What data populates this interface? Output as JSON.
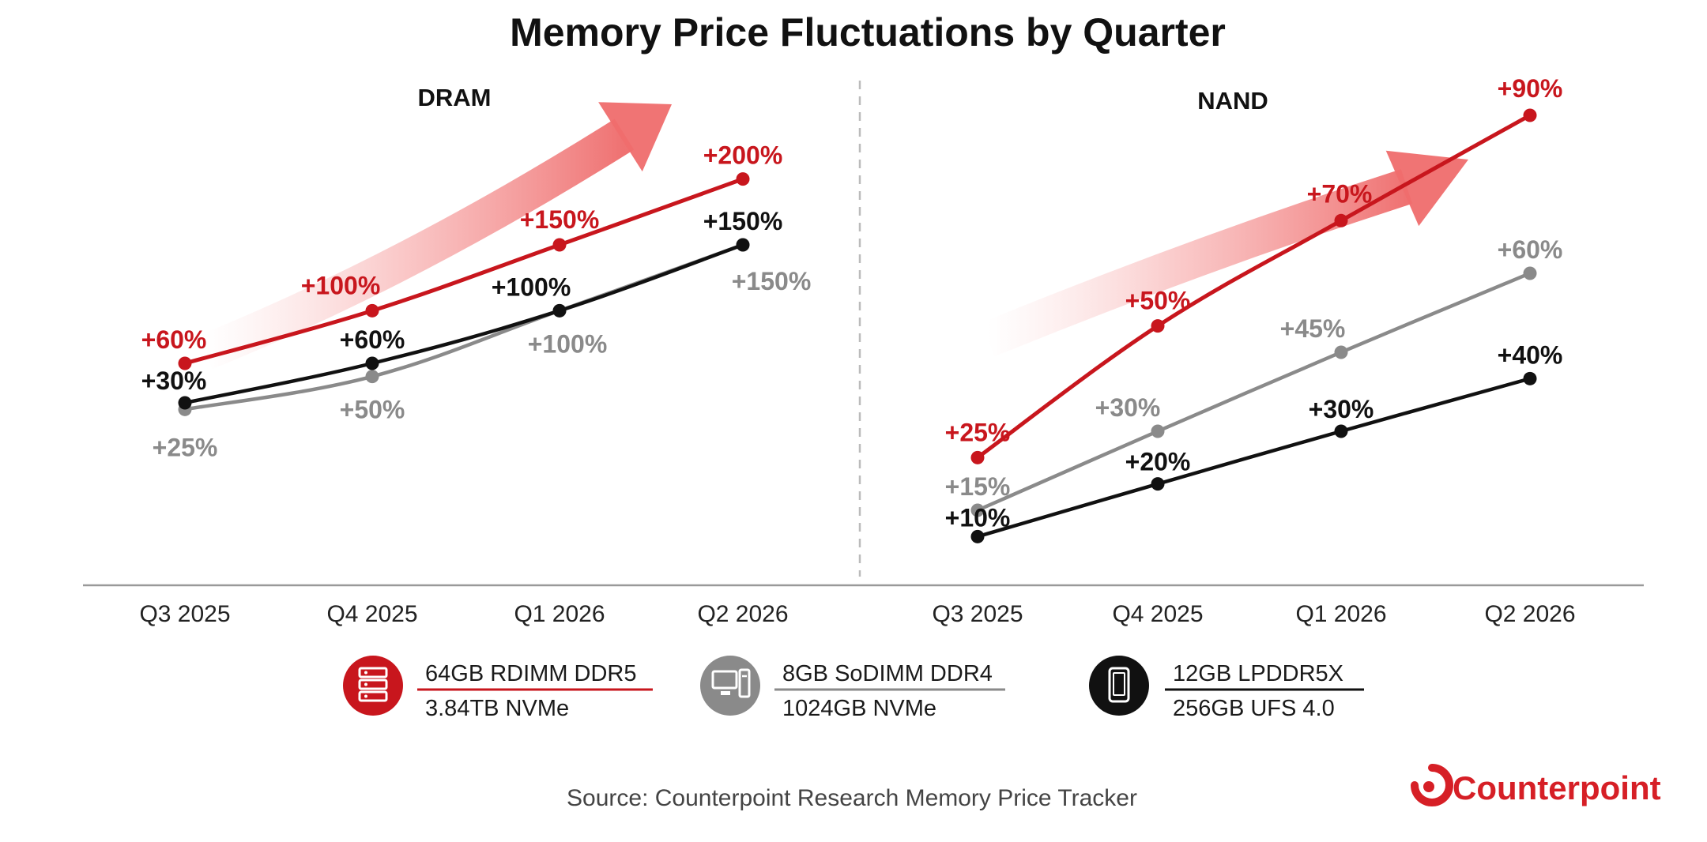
{
  "title": "Memory Price Fluctuations by Quarter",
  "source": "Source: Counterpoint Research Memory Price Tracker",
  "brand": {
    "name": "Counterpoint",
    "color": "#d61f26"
  },
  "colors": {
    "red": "#c8161d",
    "gray": "#8a8a8a",
    "black": "#111111",
    "axis": "#999999",
    "divider": "#bbbbbb"
  },
  "chart_data": [
    {
      "type": "line",
      "title": "DRAM",
      "categories": [
        "Q3 2025",
        "Q4 2025",
        "Q1 2026",
        "Q2 2026"
      ],
      "series": [
        {
          "key": "red",
          "values": [
            60,
            100,
            150,
            200
          ],
          "labels": [
            "+60%",
            "+100%",
            "+150%",
            "+200%"
          ]
        },
        {
          "key": "black",
          "values": [
            30,
            60,
            100,
            150
          ],
          "labels": [
            "+30%",
            "+60%",
            "+100%",
            "+150%"
          ]
        },
        {
          "key": "gray",
          "values": [
            25,
            50,
            100,
            150
          ],
          "labels": [
            "+25%",
            "+50%",
            "+100%",
            "+150%"
          ]
        }
      ],
      "trend_arrow": true,
      "grid": false
    },
    {
      "type": "line",
      "title": "NAND",
      "categories": [
        "Q3 2025",
        "Q4 2025",
        "Q1 2026",
        "Q2 2026"
      ],
      "series": [
        {
          "key": "red",
          "values": [
            25,
            50,
            70,
            90
          ],
          "labels": [
            "+25%",
            "+50%",
            "+70%",
            "+90%"
          ]
        },
        {
          "key": "gray",
          "values": [
            15,
            30,
            45,
            60
          ],
          "labels": [
            "+15%",
            "+30%",
            "+45%",
            "+60%"
          ]
        },
        {
          "key": "black",
          "values": [
            10,
            20,
            30,
            40
          ],
          "labels": [
            "+10%",
            "+20%",
            "+30%",
            "+40%"
          ]
        }
      ],
      "trend_arrow": true,
      "grid": false
    }
  ],
  "legend": [
    {
      "key": "red",
      "icon": "server-icon",
      "dram": "64GB RDIMM DDR5",
      "nand": "3.84TB NVMe"
    },
    {
      "key": "gray",
      "icon": "desktop-pc-icon",
      "dram": "8GB SoDIMM DDR4",
      "nand": "1024GB NVMe"
    },
    {
      "key": "black",
      "icon": "smartphone-icon",
      "dram": "12GB LPDDR5X",
      "nand": "256GB UFS 4.0"
    }
  ]
}
